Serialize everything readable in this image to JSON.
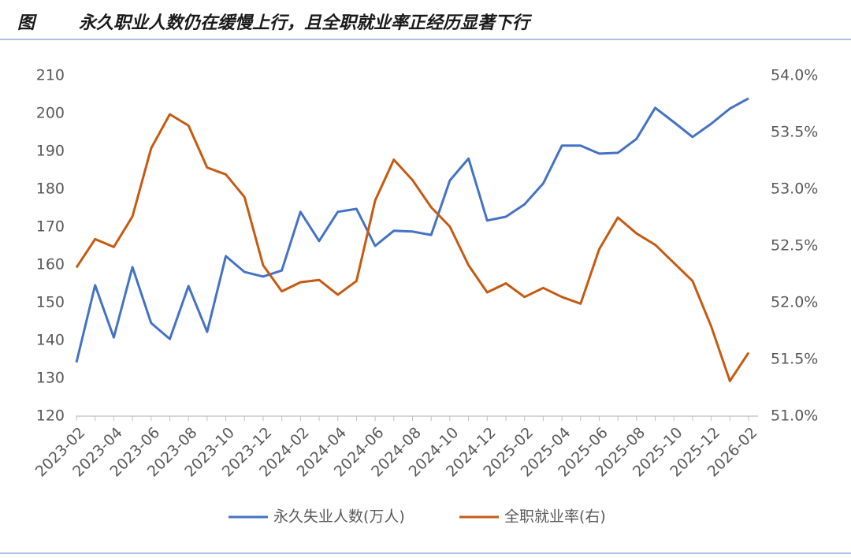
{
  "chart_data": {
    "type": "line",
    "figure_label": "图",
    "title": "永久职业人数仍在缓慢上行，且全职就业率正经历显著下行",
    "categories": [
      "2023-02",
      null,
      "2023-04",
      null,
      "2023-06",
      null,
      "2023-08",
      null,
      "2023-10",
      null,
      "2023-12",
      null,
      "2024-02",
      null,
      "2024-04",
      null,
      "2024-06",
      null,
      "2024-08",
      null,
      "2024-10",
      null,
      "2024-12",
      null,
      "2025-02",
      null,
      "2025-04",
      null,
      "2025-06",
      null,
      "2025-08",
      null,
      "2025-10",
      null,
      "2025-12",
      null,
      "2026-02"
    ],
    "series": [
      {
        "name": "永久失业人数(万人)",
        "color": "#4472c4",
        "axis": "y",
        "values": [
          134.2,
          154.6,
          140.8,
          159.4,
          144.6,
          140.4,
          154.4,
          142.3,
          162.3,
          158.1,
          156.9,
          158.5,
          174,
          166.3,
          174,
          174.8,
          165,
          169,
          168.8,
          167.9,
          182.3,
          188.1,
          171.7,
          172.7,
          176,
          181.5,
          191.5,
          191.5,
          189.4,
          189.6,
          193.3,
          201.5,
          197.7,
          193.8,
          197.3,
          201.3,
          204
        ]
      },
      {
        "name": "全职就业率(右)",
        "color": "#c55a11",
        "axis": "y2",
        "values": [
          52.31,
          52.56,
          52.49,
          52.76,
          53.36,
          53.66,
          53.56,
          53.19,
          53.13,
          52.93,
          52.33,
          52.1,
          52.18,
          52.2,
          52.07,
          52.19,
          52.9,
          53.26,
          53.08,
          52.84,
          52.67,
          52.33,
          52.09,
          52.17,
          52.05,
          52.13,
          52.05,
          51.99,
          52.47,
          52.75,
          52.61,
          52.51,
          52.35,
          52.19,
          51.79,
          51.31,
          51.56
        ]
      }
    ],
    "ylim": [
      120,
      210
    ],
    "yticks": [
      120,
      130,
      140,
      150,
      160,
      170,
      180,
      190,
      200,
      210
    ],
    "y2lim": [
      51,
      54
    ],
    "y2ticks": [
      {
        "value": 51,
        "label": "51.0%"
      },
      {
        "value": 51.5,
        "label": "51.5%"
      },
      {
        "value": 52,
        "label": "52.0%"
      },
      {
        "value": 52.5,
        "label": "52.5%"
      },
      {
        "value": 53,
        "label": "53.0%"
      },
      {
        "value": 53.5,
        "label": "53.5%"
      },
      {
        "value": 54,
        "label": "54.0%"
      }
    ],
    "grid": false,
    "legend": "bottom"
  }
}
